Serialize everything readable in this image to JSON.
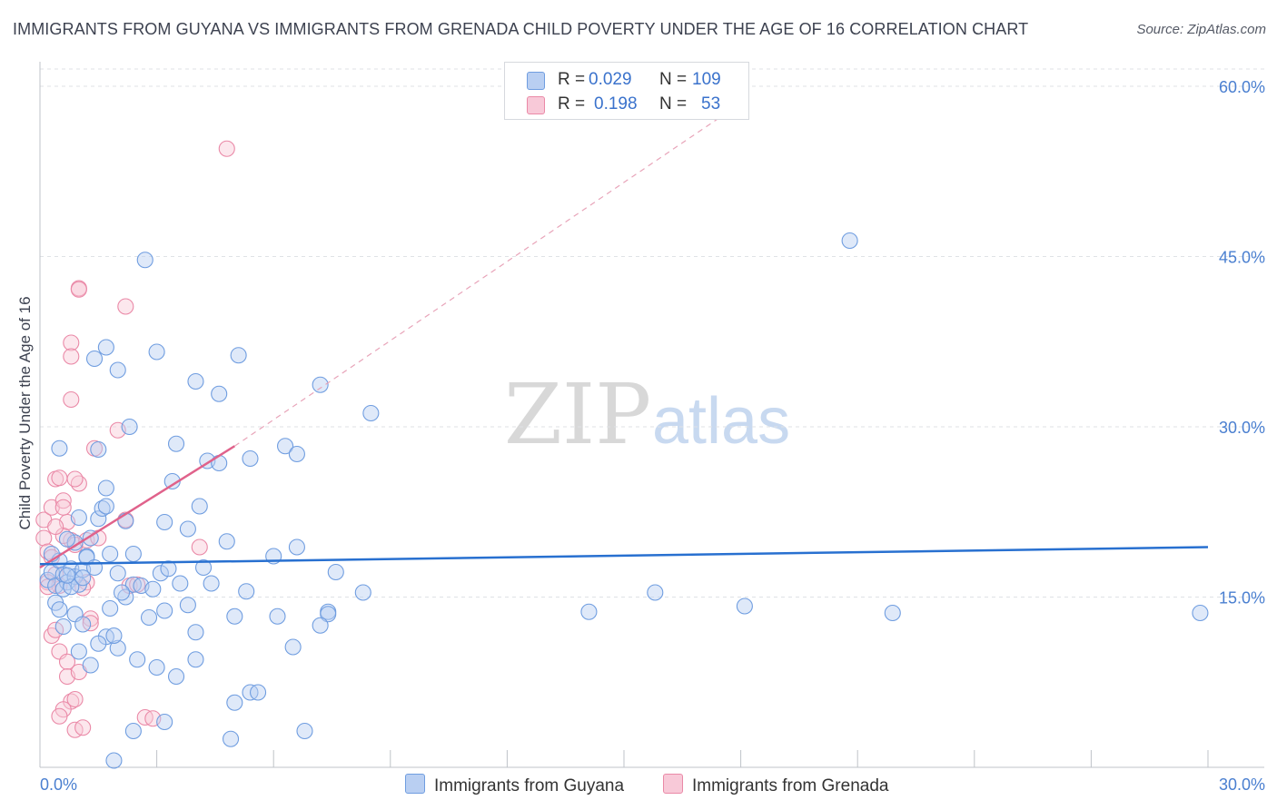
{
  "title": "IMMIGRANTS FROM GUYANA VS IMMIGRANTS FROM GRENADA CHILD POVERTY UNDER THE AGE OF 16 CORRELATION CHART",
  "source": "Source: ZipAtlas.com",
  "watermark": {
    "zip": "ZIP",
    "atlas": "atlas"
  },
  "colors": {
    "guyana": "#6f9de0",
    "guyana_fill": "#b9cff2",
    "guyana_line": "#2870d0",
    "grenada": "#ea89a7",
    "grenada_fill": "#f8c9d8",
    "grenada_line": "#e0628b",
    "axis_text": "#4a7fd0"
  },
  "legend": {
    "rows": [
      {
        "r_label": "R =",
        "r_value": "0.029",
        "n_label": "N =",
        "n_value": "109"
      },
      {
        "r_label": "R =",
        "r_value": "0.198",
        "n_label": "N =",
        "n_value": "53"
      }
    ],
    "bottom": [
      "Immigrants from Guyana",
      "Immigrants from Grenada"
    ]
  },
  "chart_data": {
    "type": "scatter",
    "title": "IMMIGRANTS FROM GUYANA VS IMMIGRANTS FROM GRENADA CHILD POVERTY UNDER THE AGE OF 16 CORRELATION CHART",
    "xlabel": "",
    "ylabel": "Child Poverty Under the Age of 16",
    "xlim": [
      0,
      30
    ],
    "ylim": [
      0,
      60
    ],
    "x_tick_labels": [
      "0.0%",
      "30.0%"
    ],
    "y_ticks": [
      15,
      30,
      45,
      60
    ],
    "y_tick_labels": [
      "15.0%",
      "30.0%",
      "45.0%",
      "60.0%"
    ],
    "grid": true,
    "series": [
      {
        "name": "Immigrants from Guyana",
        "R": 0.029,
        "N": 109,
        "trend": {
          "x": [
            0,
            30
          ],
          "y": [
            17.9,
            19.4
          ],
          "style": "solid"
        },
        "points": [
          [
            0.2,
            16.5
          ],
          [
            0.3,
            17.2
          ],
          [
            0.4,
            16.0
          ],
          [
            0.5,
            18.2
          ],
          [
            0.6,
            17.0
          ],
          [
            0.7,
            16.3
          ],
          [
            0.8,
            17.5
          ],
          [
            0.9,
            16.8
          ],
          [
            1.0,
            16.1
          ],
          [
            0.3,
            18.8
          ],
          [
            0.4,
            14.5
          ],
          [
            0.5,
            13.9
          ],
          [
            0.6,
            15.7
          ],
          [
            0.8,
            15.9
          ],
          [
            1.1,
            17.4
          ],
          [
            1.2,
            18.6
          ],
          [
            1.3,
            20.2
          ],
          [
            1.5,
            21.9
          ],
          [
            1.6,
            22.8
          ],
          [
            1.8,
            18.8
          ],
          [
            2.0,
            17.1
          ],
          [
            2.2,
            15.0
          ],
          [
            2.4,
            16.1
          ],
          [
            2.6,
            16.0
          ],
          [
            2.9,
            15.7
          ],
          [
            3.1,
            17.1
          ],
          [
            3.3,
            17.5
          ],
          [
            3.6,
            16.2
          ],
          [
            3.8,
            14.3
          ],
          [
            4.4,
            16.2
          ],
          [
            0.6,
            12.4
          ],
          [
            1.0,
            10.2
          ],
          [
            1.3,
            9.0
          ],
          [
            1.7,
            11.5
          ],
          [
            2.0,
            10.5
          ],
          [
            2.5,
            9.5
          ],
          [
            3.0,
            8.8
          ],
          [
            3.5,
            8.0
          ],
          [
            4.0,
            9.5
          ],
          [
            5.0,
            13.3
          ],
          [
            0.9,
            13.5
          ],
          [
            1.1,
            12.6
          ],
          [
            1.5,
            10.9
          ],
          [
            1.9,
            11.6
          ],
          [
            2.8,
            13.2
          ],
          [
            3.2,
            13.8
          ],
          [
            4.0,
            11.9
          ],
          [
            5.4,
            6.6
          ],
          [
            5.0,
            5.7
          ],
          [
            5.6,
            6.6
          ],
          [
            2.4,
            3.2
          ],
          [
            3.2,
            4.0
          ],
          [
            4.9,
            2.5
          ],
          [
            6.8,
            3.2
          ],
          [
            1.9,
            0.6
          ],
          [
            7.4,
            13.7
          ],
          [
            7.4,
            13.5
          ],
          [
            7.2,
            12.5
          ],
          [
            6.5,
            10.6
          ],
          [
            8.3,
            15.4
          ],
          [
            0.5,
            28.1
          ],
          [
            1.5,
            28.0
          ],
          [
            0.9,
            19.8
          ],
          [
            1.7,
            23.0
          ],
          [
            2.4,
            18.8
          ],
          [
            3.5,
            28.5
          ],
          [
            4.3,
            27.0
          ],
          [
            4.6,
            26.8
          ],
          [
            5.4,
            27.2
          ],
          [
            6.3,
            28.3
          ],
          [
            6.6,
            27.6
          ],
          [
            1.7,
            24.6
          ],
          [
            2.3,
            30.0
          ],
          [
            3.4,
            25.2
          ],
          [
            3.8,
            21.0
          ],
          [
            4.2,
            17.6
          ],
          [
            4.8,
            19.9
          ],
          [
            6.0,
            18.6
          ],
          [
            6.6,
            19.4
          ],
          [
            7.6,
            17.2
          ],
          [
            1.4,
            36.0
          ],
          [
            1.7,
            37.0
          ],
          [
            2.0,
            35.0
          ],
          [
            3.0,
            36.6
          ],
          [
            4.0,
            34.0
          ],
          [
            4.6,
            32.9
          ],
          [
            5.1,
            36.3
          ],
          [
            7.2,
            33.7
          ],
          [
            8.5,
            31.2
          ],
          [
            2.7,
            44.7
          ],
          [
            1.2,
            18.5
          ],
          [
            1.0,
            22.0
          ],
          [
            0.7,
            20.1
          ],
          [
            1.8,
            14.0
          ],
          [
            2.2,
            21.7
          ],
          [
            3.2,
            21.6
          ],
          [
            4.1,
            23.0
          ],
          [
            5.3,
            15.5
          ],
          [
            6.1,
            13.3
          ],
          [
            14.1,
            13.7
          ],
          [
            15.8,
            15.4
          ],
          [
            18.1,
            14.2
          ],
          [
            21.9,
            13.6
          ],
          [
            29.8,
            13.6
          ],
          [
            20.8,
            46.4
          ],
          [
            1.1,
            16.7
          ],
          [
            0.7,
            16.9
          ],
          [
            1.4,
            17.6
          ],
          [
            2.1,
            15.4
          ]
        ]
      },
      {
        "name": "Immigrants from Grenada",
        "R": 0.198,
        "N": 53,
        "trend": {
          "x": [
            0,
            5.0
          ],
          "y": [
            17.6,
            28.3
          ],
          "style": "solid"
        },
        "trend_extension": {
          "x": [
            5.0,
            18.0
          ],
          "y": [
            28.3,
            58.5
          ],
          "style": "dashed"
        },
        "points": [
          [
            0.1,
            20.2
          ],
          [
            0.2,
            19.0
          ],
          [
            0.1,
            21.8
          ],
          [
            0.3,
            18.5
          ],
          [
            0.4,
            17.0
          ],
          [
            0.2,
            16.3
          ],
          [
            0.5,
            16.0
          ],
          [
            0.3,
            22.9
          ],
          [
            0.4,
            25.4
          ],
          [
            0.5,
            25.5
          ],
          [
            0.6,
            23.5
          ],
          [
            0.7,
            21.6
          ],
          [
            0.8,
            20.0
          ],
          [
            0.9,
            19.6
          ],
          [
            1.0,
            25.0
          ],
          [
            0.6,
            20.4
          ],
          [
            0.3,
            11.6
          ],
          [
            0.4,
            12.1
          ],
          [
            0.5,
            10.2
          ],
          [
            0.7,
            9.3
          ],
          [
            0.7,
            8.0
          ],
          [
            1.0,
            8.4
          ],
          [
            0.8,
            5.8
          ],
          [
            0.6,
            5.1
          ],
          [
            0.5,
            4.5
          ],
          [
            0.9,
            3.3
          ],
          [
            1.1,
            3.5
          ],
          [
            1.2,
            16.3
          ],
          [
            1.3,
            13.1
          ],
          [
            1.3,
            12.7
          ],
          [
            0.8,
            37.4
          ],
          [
            0.8,
            36.2
          ],
          [
            0.8,
            32.4
          ],
          [
            1.0,
            42.2
          ],
          [
            1.0,
            42.1
          ],
          [
            2.2,
            40.6
          ],
          [
            1.4,
            28.1
          ],
          [
            2.0,
            29.7
          ],
          [
            2.2,
            21.8
          ],
          [
            2.3,
            16.0
          ],
          [
            2.5,
            16.1
          ],
          [
            2.7,
            4.4
          ],
          [
            2.9,
            4.3
          ],
          [
            4.1,
            19.4
          ],
          [
            4.8,
            54.5
          ],
          [
            1.2,
            20.0
          ],
          [
            0.4,
            21.2
          ],
          [
            0.6,
            22.9
          ],
          [
            0.2,
            15.9
          ],
          [
            0.9,
            6.0
          ],
          [
            1.1,
            15.8
          ],
          [
            1.5,
            20.2
          ],
          [
            0.9,
            25.4
          ]
        ]
      }
    ]
  }
}
